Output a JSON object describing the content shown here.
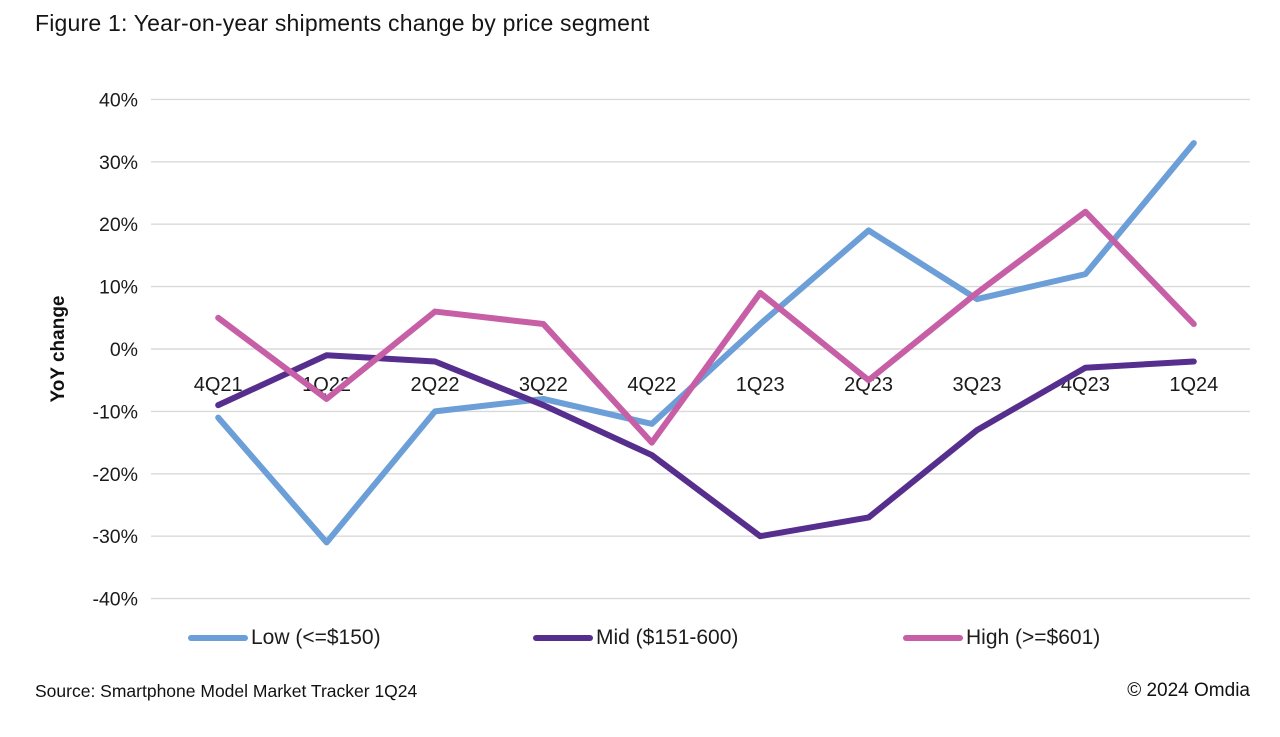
{
  "title": "Figure 1: Year-on-year shipments change by price segment",
  "footer": {
    "source": "Source: Smartphone Model Market Tracker 1Q24",
    "copyright": "© 2024 Omdia"
  },
  "colors": {
    "gridline": "#d9d9d9",
    "axis_text": "#1a1a1a",
    "low": "#6c9fd8",
    "mid": "#562e8e",
    "high": "#c75fa6"
  },
  "chart_data": {
    "type": "line",
    "title": "Figure 1: Year-on-year shipments change by price segment",
    "categories": [
      "4Q21",
      "1Q22",
      "2Q22",
      "3Q22",
      "4Q22",
      "1Q23",
      "2Q23",
      "3Q23",
      "4Q23",
      "1Q24"
    ],
    "series": [
      {
        "id": "low",
        "name": "Low (<=$150)",
        "color": "#6c9fd8",
        "values": [
          -11,
          -31,
          -10,
          -8,
          -12,
          4,
          19,
          8,
          12,
          33
        ]
      },
      {
        "id": "mid",
        "name": "Mid ($151-600)",
        "color": "#562e8e",
        "values": [
          -9,
          -1,
          -2,
          -9,
          -17,
          -30,
          -27,
          -13,
          -3,
          -2
        ]
      },
      {
        "id": "high",
        "name": "High (>=$601)",
        "color": "#c75fa6",
        "values": [
          5,
          -8,
          6,
          4,
          -15,
          9,
          -5,
          9,
          22,
          4
        ]
      }
    ],
    "xlabel": "",
    "ylabel": "YoY change",
    "ylim": [
      -40,
      40
    ],
    "ytick_step": 10,
    "ytick_format": "percent",
    "grid": "horizontal-gridlines",
    "legend_position": "bottom"
  }
}
